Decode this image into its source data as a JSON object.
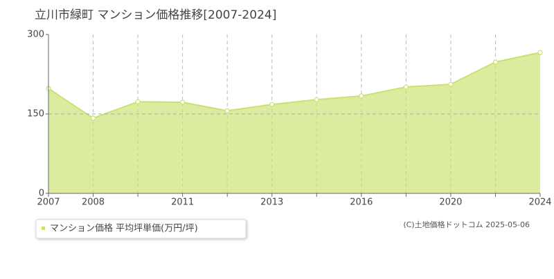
{
  "chart_data": {
    "type": "area",
    "title": "立川市緑町 マンション価格推移[2007-2024]",
    "categories": [
      "2007",
      "2008",
      null,
      "2011",
      null,
      "2013",
      null,
      "2016",
      null,
      "2020",
      null,
      "2024"
    ],
    "series": [
      {
        "name": "マンション価格 平均坪単価(万円/坪)",
        "color": "#c8e26e",
        "values": [
          198,
          142,
          173,
          172,
          156,
          168,
          177,
          184,
          201,
          206,
          248,
          266
        ]
      }
    ],
    "ylim": [
      0,
      300
    ],
    "yticks": [
      0,
      150,
      300
    ],
    "grid": true,
    "source": "(C)土地価格ドットコム 2025-05-06"
  }
}
